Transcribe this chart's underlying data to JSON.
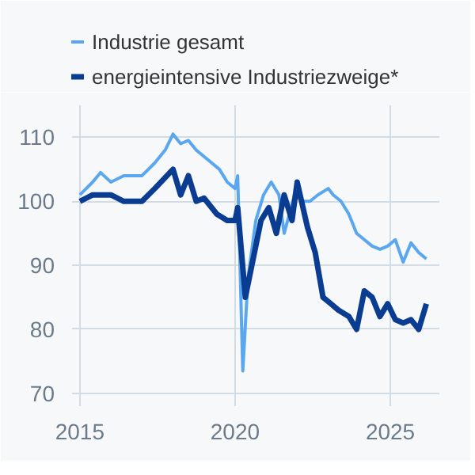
{
  "chart_data": {
    "type": "line",
    "legend": "top",
    "grid": true,
    "xlim": [
      "2014-10",
      "2026-08"
    ],
    "ylim": [
      68,
      115
    ],
    "xticks": [
      {
        "value": "2015-01",
        "label": "2015"
      },
      {
        "value": "2020-01",
        "label": "2020"
      },
      {
        "value": "2025-01",
        "label": "2025"
      }
    ],
    "yticks": [
      70,
      80,
      90,
      100,
      110
    ],
    "x": [
      "2015-01",
      "2015-06",
      "2015-09",
      "2016-01",
      "2016-06",
      "2017-01",
      "2017-06",
      "2017-10",
      "2018-01",
      "2018-04",
      "2018-07",
      "2018-10",
      "2019-01",
      "2019-04",
      "2019-07",
      "2019-10",
      "2020-01",
      "2020-02",
      "2020-04",
      "2020-06",
      "2020-09",
      "2020-12",
      "2021-03",
      "2021-06",
      "2021-08",
      "2021-12",
      "2022-03",
      "2022-06",
      "2022-09",
      "2023-01",
      "2023-03",
      "2023-06",
      "2023-09",
      "2023-12",
      "2024-03",
      "2024-06",
      "2024-09",
      "2024-12",
      "2025-03",
      "2025-06",
      "2025-09",
      "2025-12",
      "2026-03"
    ],
    "series": [
      {
        "name": "Industrie gesamt",
        "color": "#5aa7f0",
        "values": [
          101,
          103,
          104.5,
          103,
          104,
          104,
          106,
          108,
          110.5,
          109,
          109.5,
          108,
          107,
          106,
          105,
          103,
          102,
          104,
          73.5,
          88,
          97,
          101,
          103,
          101,
          95,
          101,
          100,
          100,
          101,
          102,
          101,
          100,
          98,
          95,
          94,
          93,
          92.5,
          93,
          94,
          90.5,
          93.5,
          92,
          91
        ]
      },
      {
        "name": "energieintensive Industriezweige*",
        "color": "#0a3d91",
        "x": [
          "2015-01",
          "2015-06",
          "2016-01",
          "2016-06",
          "2017-01",
          "2017-06",
          "2018-01",
          "2018-04",
          "2018-07",
          "2018-10",
          "2019-01",
          "2019-06",
          "2019-10",
          "2020-01",
          "2020-02",
          "2020-05",
          "2020-08",
          "2020-11",
          "2021-02",
          "2021-05",
          "2021-08",
          "2021-11",
          "2022-01",
          "2022-05",
          "2022-08",
          "2022-11",
          "2023-02",
          "2023-05",
          "2023-09",
          "2023-12",
          "2024-03",
          "2024-06",
          "2024-09",
          "2024-12",
          "2025-03",
          "2025-06",
          "2025-09",
          "2025-12",
          "2026-03"
        ],
        "values": [
          100,
          101,
          101,
          100,
          100,
          102,
          105,
          101,
          104,
          100,
          100.5,
          98,
          97,
          97,
          99,
          85,
          91,
          97,
          99,
          95,
          101,
          97,
          103,
          96,
          92,
          85,
          84,
          83,
          82,
          80,
          86,
          85,
          82,
          84,
          81.5,
          81,
          81.5,
          80,
          84
        ]
      }
    ]
  }
}
